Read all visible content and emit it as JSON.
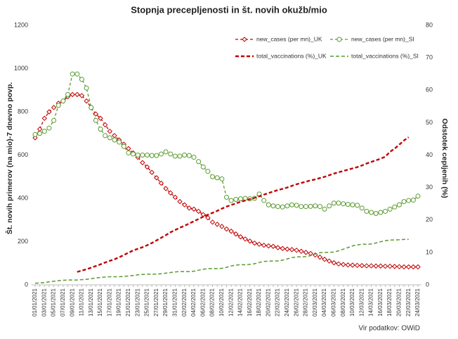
{
  "chart_data": {
    "type": "line",
    "title": "Stopnja precepljenosti in št. novih okužb/mio",
    "ylabel": "Št. novih primerov (na mio)-7 dnevno povp.",
    "y2label": "Odstotek cepljenih (%)",
    "source": "Vir podatkov: OWiD",
    "categories": [
      "01/01/2021",
      null,
      "03/01/2021",
      null,
      "05/01/2021",
      null,
      "07/01/2021",
      null,
      "09/01/2021",
      null,
      "11/01/2021",
      null,
      "13/01/2021",
      null,
      "15/01/2021",
      null,
      "17/01/2021",
      null,
      "19/01/2021",
      null,
      "21/01/2021",
      null,
      "23/01/2021",
      null,
      "25/01/2021",
      null,
      "27/01/2021",
      null,
      "29/01/2021",
      null,
      "31/01/2021",
      null,
      "02/02/2021",
      null,
      "04/02/2021",
      null,
      "06/02/2021",
      null,
      "08/02/2021",
      null,
      "10/02/2021",
      null,
      "12/02/2021",
      null,
      "14/02/2021",
      null,
      "16/02/2021",
      null,
      "18/02/2021",
      null,
      "20/02/2021",
      null,
      "22/02/2021",
      null,
      "24/02/2021",
      null,
      "26/02/2021",
      null,
      "28/02/2021",
      null,
      "02/03/2021",
      null,
      "04/03/2021",
      null,
      "06/03/2021",
      null,
      "08/03/2021",
      null,
      "10/03/2021",
      null,
      "12/03/2021",
      null,
      "14/03/2021",
      null,
      "16/03/2021",
      null,
      "18/03/2021",
      null,
      "20/03/2021",
      null,
      "22/03/2021",
      null,
      "24/03/2021"
    ],
    "ylim": [
      0,
      1200
    ],
    "yticks": [
      0,
      200,
      400,
      600,
      800,
      1000,
      1200
    ],
    "y2lim": [
      0,
      80
    ],
    "y2ticks": [
      0,
      10,
      20,
      30,
      40,
      50,
      60,
      70,
      80
    ],
    "series": [
      {
        "name": "new_cases (per mn)_UK",
        "color": "#c00000",
        "marker": "diamond",
        "dash": "4 3",
        "width": 1.3,
        "values": [
          680,
          720,
          770,
          800,
          820,
          840,
          850,
          870,
          880,
          880,
          875,
          850,
          820,
          790,
          770,
          740,
          710,
          690,
          670,
          650,
          630,
          610,
          590,
          565,
          545,
          520,
          495,
          470,
          445,
          425,
          405,
          385,
          370,
          355,
          350,
          340,
          325,
          310,
          290,
          280,
          270,
          258,
          248,
          235,
          222,
          212,
          202,
          193,
          188,
          183,
          180,
          178,
          172,
          168,
          165,
          163,
          160,
          155,
          150,
          145,
          138,
          128,
          118,
          110,
          102,
          97,
          94,
          92,
          91,
          90,
          89,
          88,
          88,
          87,
          87,
          86,
          86,
          85,
          84,
          83,
          83,
          83,
          83
        ]
      },
      {
        "name": "new_cases (per mn)_SI",
        "color": "#5a9a2e",
        "marker": "circle",
        "dash": "4 3",
        "width": 1.3,
        "values": [
          695,
          700,
          710,
          725,
          760,
          830,
          850,
          880,
          975,
          975,
          950,
          910,
          820,
          760,
          720,
          690,
          680,
          670,
          660,
          640,
          610,
          605,
          600,
          600,
          600,
          598,
          598,
          605,
          615,
          605,
          595,
          595,
          600,
          598,
          590,
          570,
          545,
          525,
          500,
          495,
          490,
          405,
          390,
          395,
          398,
          400,
          398,
          400,
          420,
          390,
          370,
          365,
          362,
          360,
          365,
          370,
          368,
          362,
          362,
          363,
          365,
          362,
          350,
          365,
          378,
          378,
          375,
          372,
          370,
          368,
          355,
          340,
          335,
          330,
          335,
          340,
          350,
          360,
          370,
          385,
          390,
          392,
          410
        ]
      },
      {
        "name": "total_vaccinations (%)_UK",
        "color": "#c00000",
        "marker": "none",
        "dash": "5 3",
        "width": 2.4,
        "axis": "y2",
        "values": [
          null,
          null,
          null,
          null,
          null,
          null,
          null,
          null,
          null,
          4.0,
          4.4,
          4.8,
          5.3,
          5.8,
          6.3,
          6.9,
          7.4,
          7.9,
          8.5,
          9.2,
          9.9,
          10.6,
          11.1,
          11.6,
          12.2,
          12.9,
          13.7,
          14.5,
          15.3,
          16.2,
          16.9,
          17.6,
          18.2,
          18.9,
          19.6,
          20.3,
          21.0,
          21.6,
          22.2,
          22.8,
          23.5,
          24.1,
          24.6,
          25.1,
          25.6,
          26.0,
          26.4,
          26.8,
          27.3,
          27.8,
          28.3,
          28.8,
          29.2,
          29.6,
          30.0,
          30.5,
          31.0,
          31.4,
          31.8,
          32.2,
          32.5,
          32.9,
          33.3,
          33.8,
          34.3,
          34.7,
          35.1,
          35.5,
          35.9,
          36.3,
          36.8,
          37.4,
          37.9,
          38.4,
          38.9,
          39.5,
          41.0,
          42.0,
          43.2,
          44.5,
          45.5,
          null,
          null
        ]
      },
      {
        "name": "total_vaccinations (%)_SI",
        "color": "#5a9a2e",
        "marker": "none",
        "dash": "5 3",
        "width": 1.5,
        "axis": "y2",
        "values": [
          0.5,
          0.6,
          0.7,
          0.9,
          1.1,
          1.3,
          1.4,
          1.5,
          1.5,
          1.5,
          1.6,
          1.7,
          1.9,
          2.1,
          2.3,
          2.4,
          2.5,
          2.5,
          2.5,
          2.6,
          2.7,
          2.9,
          3.1,
          3.2,
          3.3,
          3.3,
          3.3,
          3.4,
          3.6,
          3.8,
          4.0,
          4.1,
          4.1,
          4.1,
          4.2,
          4.5,
          4.8,
          5.0,
          5.0,
          5.0,
          5.1,
          5.4,
          5.8,
          6.1,
          6.2,
          6.2,
          6.3,
          6.5,
          6.9,
          7.2,
          7.3,
          7.3,
          7.4,
          7.6,
          8.0,
          8.4,
          8.6,
          8.6,
          8.7,
          9.0,
          9.5,
          9.9,
          10.0,
          10.0,
          10.1,
          10.5,
          11.0,
          11.5,
          12.0,
          12.3,
          12.5,
          12.5,
          12.6,
          12.9,
          13.3,
          13.6,
          13.8,
          13.8,
          13.9,
          14.0,
          14.0,
          null,
          null
        ]
      }
    ]
  }
}
